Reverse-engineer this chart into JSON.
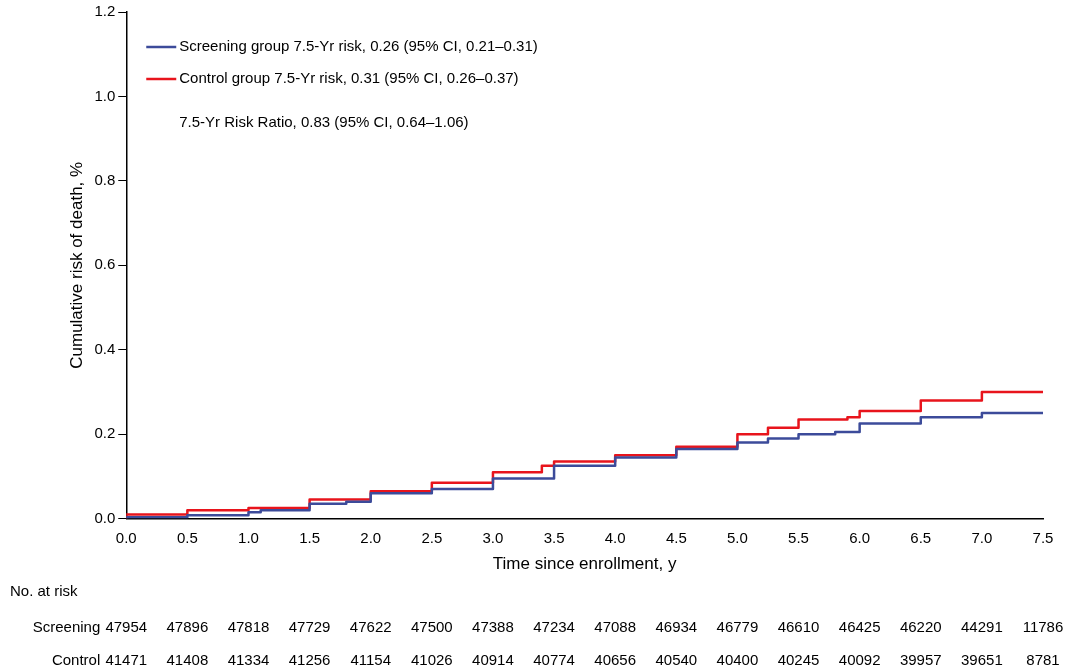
{
  "chart_data": {
    "type": "step",
    "xlabel": "Time since enrollment, y",
    "ylabel": "Cumulative risk of death, %",
    "xlim": [
      0,
      7.5
    ],
    "xticks": [
      {
        "value": 0,
        "label": "0.0"
      },
      {
        "value": 0.5,
        "label": "0.5"
      },
      {
        "value": 1,
        "label": "1.0"
      },
      {
        "value": 1.5,
        "label": "1.5"
      },
      {
        "value": 2,
        "label": "2.0"
      },
      {
        "value": 2.5,
        "label": "2.5"
      },
      {
        "value": 3,
        "label": "3.0"
      },
      {
        "value": 3.5,
        "label": "3.5"
      },
      {
        "value": 4,
        "label": "4.0"
      },
      {
        "value": 4.5,
        "label": "4.5"
      },
      {
        "value": 5,
        "label": "5.0"
      },
      {
        "value": 5.5,
        "label": "5.5"
      },
      {
        "value": 6,
        "label": "6.0"
      },
      {
        "value": 6.5,
        "label": "6.5"
      },
      {
        "value": 7,
        "label": "7.0"
      },
      {
        "value": 7.5,
        "label": "7.5"
      }
    ],
    "ylim": [
      0,
      1.2
    ],
    "yticks": [
      {
        "value": 0,
        "label": "0.0"
      },
      {
        "value": 0.2,
        "label": "0.2"
      },
      {
        "value": 0.4,
        "label": "0.4"
      },
      {
        "value": 0.6,
        "label": "0.6"
      },
      {
        "value": 0.8,
        "label": "0.8"
      },
      {
        "value": 1,
        "label": "1.0"
      },
      {
        "value": 1.2,
        "label": "1.2"
      }
    ],
    "grid": false,
    "legend": "top left",
    "marker": "none",
    "line_style": "solid",
    "series": [
      {
        "name": "Screening group 7.5-Yr risk, 0.26 (95% CI, 0.21–0.31)",
        "color": "#3c4b9a",
        "x": [
          0,
          0.5,
          1.0,
          1.1,
          1.5,
          1.8,
          2.0,
          2.5,
          3.0,
          3.5,
          4.0,
          4.5,
          5.0,
          5.25,
          5.5,
          5.8,
          6.0,
          6.5,
          7.0,
          7.5
        ],
        "values": [
          0,
          0.003,
          0.008,
          0.015,
          0.02,
          0.035,
          0.04,
          0.06,
          0.07,
          0.095,
          0.125,
          0.145,
          0.165,
          0.18,
          0.19,
          0.2,
          0.205,
          0.225,
          0.24,
          0.25
        ]
      },
      {
        "name": "Control group 7.5-Yr risk, 0.31 (95% CI, 0.26–0.37)",
        "color": "#e8141c",
        "x": [
          0,
          0.5,
          1.0,
          1.5,
          2.0,
          2.5,
          3.0,
          3.4,
          3.5,
          4.0,
          4.5,
          5.0,
          5.25,
          5.5,
          5.9,
          6.0,
          6.5,
          7.0,
          7.5
        ],
        "values": [
          0,
          0.01,
          0.02,
          0.025,
          0.045,
          0.065,
          0.085,
          0.11,
          0.125,
          0.135,
          0.15,
          0.17,
          0.2,
          0.215,
          0.235,
          0.24,
          0.255,
          0.28,
          0.3
        ]
      }
    ],
    "annotations": [
      "7.5-Yr Risk Ratio, 0.83 (95% CI, 0.64–1.06)",
      "No. at risk",
      "Screening 47954 47896 47818 47729 47622 47500 47388 47234 47088 46934 46779 46610 46425 46220 44291 11786",
      "Control 41471 41408 41334 41256 41154 41026 40914 40774 40656 40540 40400 40245 40092 39957 39651 8781"
    ]
  }
}
